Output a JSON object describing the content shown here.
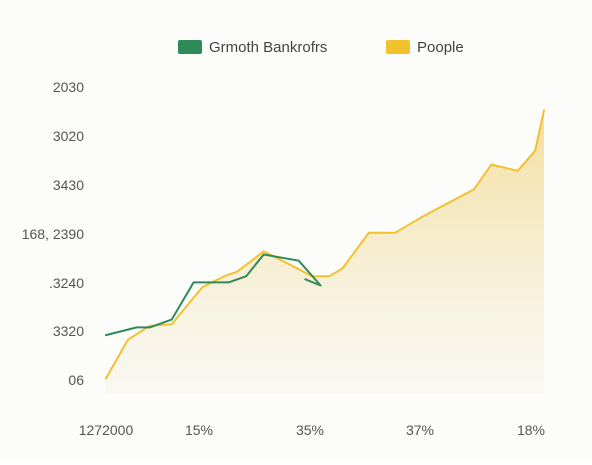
{
  "chart_data": {
    "type": "area",
    "legend": {
      "placement": "top-center",
      "entries": [
        {
          "label": "Grmoth Bankrofrs",
          "color": "#2e8b57"
        },
        {
          "label": "Poople",
          "color": "#f2c12e"
        }
      ]
    },
    "y_tick_labels": [
      "2030",
      "3020",
      "3430",
      "168, 2390",
      ".3240",
      "3320",
      "06"
    ],
    "x_tick_labels": [
      "1272000",
      "15%",
      "35%",
      "37%",
      "18%"
    ],
    "x_range": [
      0,
      100
    ],
    "y_range": [
      0,
      100
    ],
    "grid": false,
    "series": [
      {
        "name": "Grmoth Bankrofrs",
        "kind": "line",
        "color": "#2e8b57",
        "x": [
          0,
          7,
          10,
          15,
          20,
          28,
          32,
          36,
          44,
          49,
          45.5
        ],
        "y": [
          19,
          21.5,
          21.5,
          24,
          36,
          36,
          38,
          45,
          43,
          35,
          37
        ]
      },
      {
        "name": "Poople",
        "kind": "area",
        "color": "#f2c12e",
        "fill_top": "#f4dc9a",
        "fill_bottom": "#f7f7ee",
        "x": [
          0,
          5,
          10,
          15,
          22,
          27,
          30,
          36,
          43,
          47,
          51,
          54,
          60,
          66,
          72,
          78,
          84,
          88,
          94,
          98,
          100
        ],
        "y": [
          5,
          17.5,
          22,
          22.5,
          34.5,
          38,
          39.5,
          46,
          41,
          38,
          38,
          40.5,
          52,
          52,
          57,
          61.5,
          66,
          74,
          72,
          78.5,
          91.5
        ]
      }
    ]
  }
}
